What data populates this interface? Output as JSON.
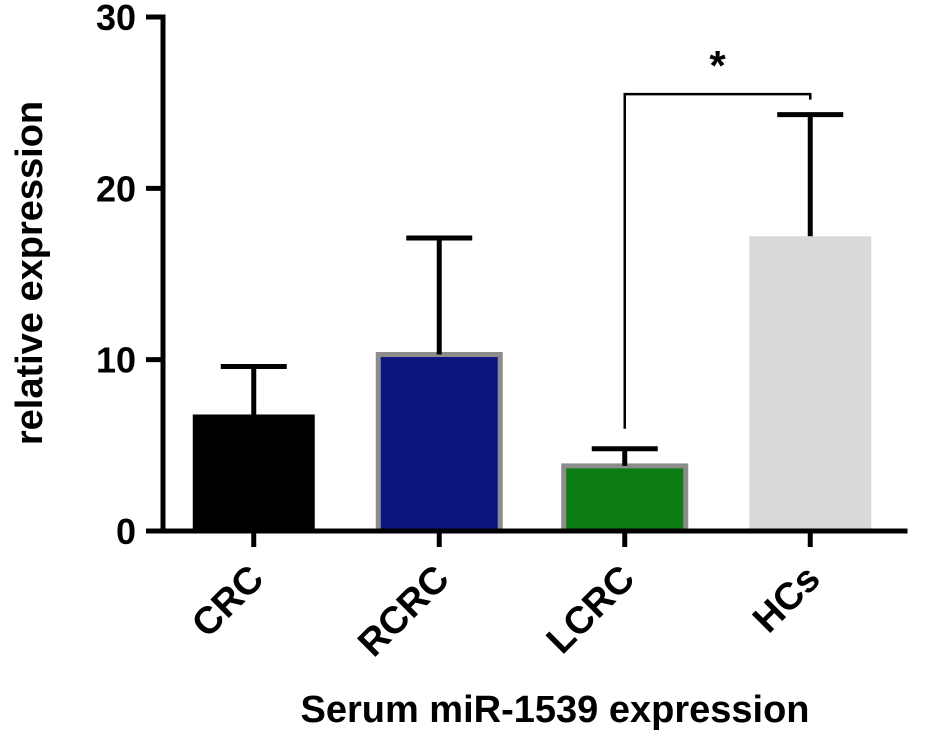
{
  "chart_data": {
    "type": "bar",
    "title": "",
    "xlabel": "Serum miR-1539 expression",
    "ylabel": "relative expression",
    "ylim": [
      0,
      30
    ],
    "yticks": [
      0,
      10,
      20,
      30
    ],
    "grid": false,
    "categories": [
      "CRC",
      "RCRC",
      "LCRC",
      "HCs"
    ],
    "values": [
      6.8,
      10.3,
      3.8,
      17.2
    ],
    "error_upper": [
      9.6,
      17.1,
      4.8,
      24.3
    ],
    "bar_colors": [
      "#000000",
      "#0a1580",
      "#0b7d12",
      "#d9d9d9"
    ],
    "bar_borders": [
      "#000000",
      "#8c8c8c",
      "#8c8c8c",
      "#d9d9d9"
    ],
    "annotations": [
      {
        "type": "significance",
        "from": "LCRC",
        "to": "HCs",
        "label": "*",
        "y": 25.5
      }
    ]
  }
}
